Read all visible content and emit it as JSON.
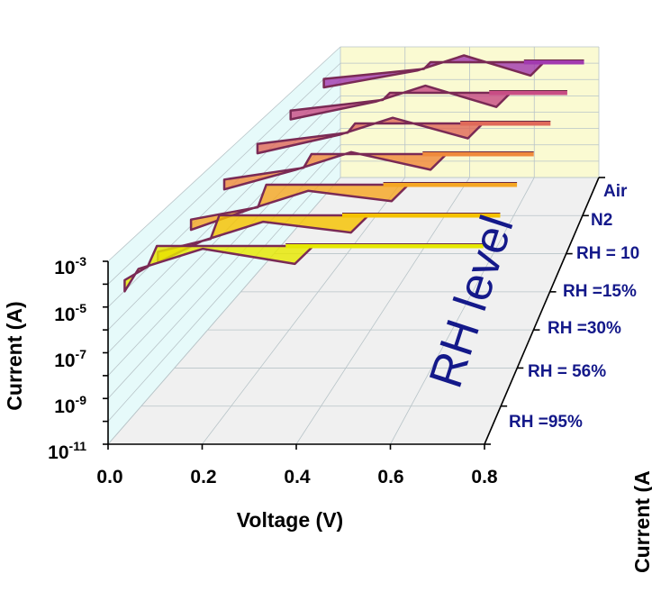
{
  "chart_data": {
    "type": "line",
    "subtype": "3d-waterfall-hysteresis",
    "xlabel": "Voltage (V)",
    "ylabel": "Current (A)",
    "zlabel": "RH level",
    "x_ticks": [
      "0.0",
      "0.2",
      "0.4",
      "0.6",
      "0.8"
    ],
    "xlim": [
      0,
      0.8
    ],
    "y_scale": "log",
    "y_ticks": [
      {
        "base": "10",
        "exp": "-3"
      },
      {
        "base": "10",
        "exp": "-5"
      },
      {
        "base": "10",
        "exp": "-7"
      },
      {
        "base": "10",
        "exp": "-9"
      },
      {
        "base": "10",
        "exp": "-11"
      }
    ],
    "ylim": [
      1e-11,
      0.001
    ],
    "z_categories": [
      "RH =95%",
      "RH = 56%",
      "RH =30%",
      "RH =15%",
      "RH = 10",
      "N2",
      "Air"
    ],
    "colors": [
      "#e6e800",
      "#f5c200",
      "#f5a623",
      "#f08a3c",
      "#e06a5a",
      "#c84d85",
      "#a23ab0"
    ],
    "series": [
      {
        "category": "RH =95%",
        "set_voltage": 0.05,
        "hrs_current": 3e-05,
        "lrs_current": 0.001,
        "compliance": 0.001,
        "x_end": 0.78
      },
      {
        "category": "RH = 56%",
        "set_voltage": 0.12,
        "hrs_current": 2e-05,
        "lrs_current": 0.001,
        "compliance": 0.001,
        "x_end": 0.78
      },
      {
        "category": "RH =30%",
        "set_voltage": 0.16,
        "hrs_current": 2e-05,
        "lrs_current": 0.001,
        "compliance": 0.001,
        "x_end": 0.78
      },
      {
        "category": "RH =15%",
        "set_voltage": 0.2,
        "hrs_current": 5e-05,
        "lrs_current": 0.001,
        "compliance": 0.001,
        "x_end": 0.78
      },
      {
        "category": "RH = 10",
        "set_voltage": 0.24,
        "hrs_current": 8e-05,
        "lrs_current": 0.001,
        "compliance": 0.001,
        "x_end": 0.78
      },
      {
        "category": "N2",
        "set_voltage": 0.26,
        "hrs_current": 0.0001,
        "lrs_current": 0.001,
        "compliance": 0.001,
        "x_end": 0.78
      },
      {
        "category": "Air",
        "set_voltage": 0.3,
        "hrs_current": 0.0001,
        "lrs_current": 0.001,
        "compliance": 0.001,
        "x_end": 0.78
      }
    ],
    "grid": true,
    "legend": "none",
    "panel_back_color": "#fafad2",
    "panel_side_color": "#e6fafa",
    "panel_floor_color": "#f0f0f0",
    "z_label_color": "#14198a"
  },
  "cut_off_label": "Current (A"
}
